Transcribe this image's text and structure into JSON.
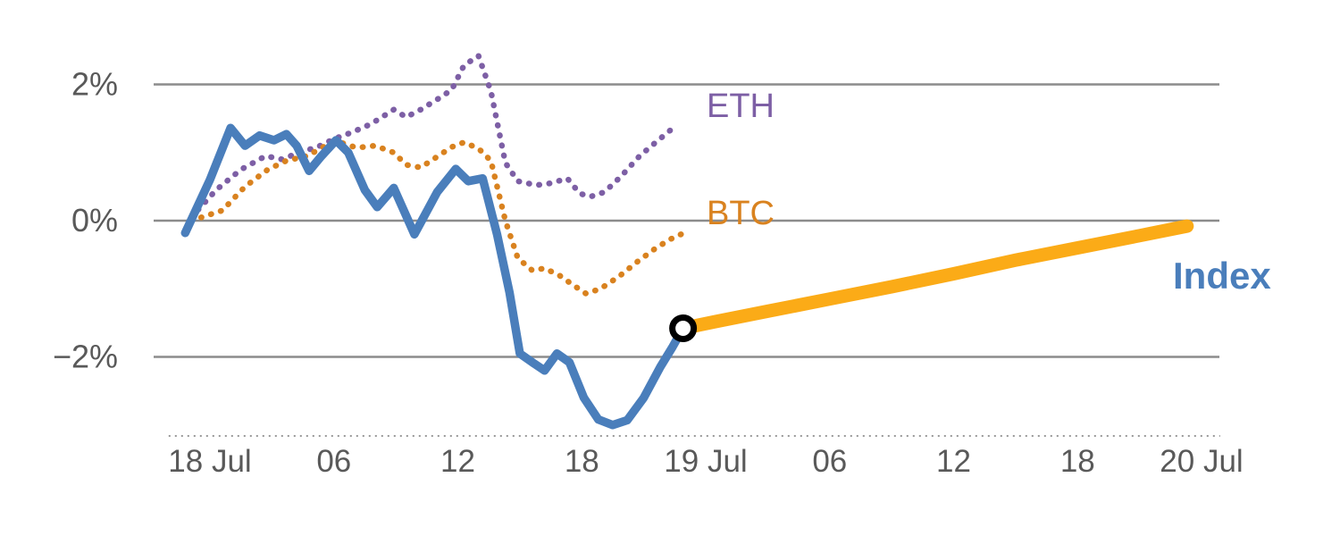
{
  "chart_data": {
    "type": "line",
    "grid": true,
    "grid_color": "#8c8c8c",
    "axis_color": "#999999",
    "text_color": "#595959",
    "baseline_value": -3.16,
    "ylim": [
      -3.3,
      2.6
    ],
    "xlim_hours": [
      -2,
      48.9
    ],
    "y_ticks": [
      {
        "value": 2,
        "label": "2%"
      },
      {
        "value": 0,
        "label": "0%"
      },
      {
        "value": -2,
        "label": "−2%"
      }
    ],
    "x_ticks": [
      {
        "t": 0,
        "label": "18 Jul"
      },
      {
        "t": 6,
        "label": "06"
      },
      {
        "t": 12,
        "label": "12"
      },
      {
        "t": 18,
        "label": "18"
      },
      {
        "t": 24,
        "label": "19 Jul"
      },
      {
        "t": 30,
        "label": "06"
      },
      {
        "t": 36,
        "label": "12"
      },
      {
        "t": 42,
        "label": "18"
      },
      {
        "t": 48,
        "label": "20 Jul"
      }
    ],
    "series_labels": {
      "eth": "ETH",
      "btc": "BTC",
      "index": "Index"
    },
    "series": [
      {
        "name": "ETH",
        "color": "#7d5fa5",
        "style": "dotted",
        "width": 6.5,
        "points": [
          [
            -0.9,
            0.05
          ],
          [
            0.3,
            0.45
          ],
          [
            1.5,
            0.75
          ],
          [
            2.7,
            0.95
          ],
          [
            3.5,
            0.9
          ],
          [
            4.3,
            1.0
          ],
          [
            5.2,
            1.08
          ],
          [
            6.0,
            1.2
          ],
          [
            6.9,
            1.3
          ],
          [
            7.8,
            1.42
          ],
          [
            8.9,
            1.63
          ],
          [
            9.5,
            1.52
          ],
          [
            10.2,
            1.63
          ],
          [
            11.0,
            1.78
          ],
          [
            11.7,
            1.92
          ],
          [
            12.3,
            2.28
          ],
          [
            13.0,
            2.42
          ],
          [
            13.6,
            1.9
          ],
          [
            14.3,
            0.85
          ],
          [
            14.9,
            0.58
          ],
          [
            15.8,
            0.52
          ],
          [
            16.5,
            0.55
          ],
          [
            17.3,
            0.62
          ],
          [
            17.9,
            0.4
          ],
          [
            18.4,
            0.35
          ],
          [
            19.1,
            0.42
          ],
          [
            19.9,
            0.65
          ],
          [
            20.8,
            0.95
          ],
          [
            21.7,
            1.18
          ],
          [
            22.5,
            1.38
          ]
        ]
      },
      {
        "name": "BTC",
        "color": "#d9821f",
        "style": "dotted",
        "width": 6.5,
        "points": [
          [
            -0.9,
            0.0
          ],
          [
            0.6,
            0.15
          ],
          [
            1.7,
            0.5
          ],
          [
            2.8,
            0.75
          ],
          [
            3.7,
            0.88
          ],
          [
            4.7,
            0.95
          ],
          [
            5.6,
            1.1
          ],
          [
            6.3,
            1.15
          ],
          [
            7.1,
            1.07
          ],
          [
            8.0,
            1.1
          ],
          [
            8.9,
            1.0
          ],
          [
            9.5,
            0.82
          ],
          [
            10.2,
            0.78
          ],
          [
            10.8,
            0.9
          ],
          [
            11.7,
            1.08
          ],
          [
            12.3,
            1.15
          ],
          [
            13.0,
            1.06
          ],
          [
            13.6,
            0.88
          ],
          [
            14.3,
            0.0
          ],
          [
            14.9,
            -0.55
          ],
          [
            15.6,
            -0.73
          ],
          [
            16.2,
            -0.7
          ],
          [
            16.9,
            -0.8
          ],
          [
            17.6,
            -0.95
          ],
          [
            18.2,
            -1.07
          ],
          [
            18.9,
            -1.0
          ],
          [
            19.8,
            -0.82
          ],
          [
            20.7,
            -0.6
          ],
          [
            21.6,
            -0.4
          ],
          [
            22.3,
            -0.27
          ],
          [
            22.8,
            -0.2
          ]
        ]
      },
      {
        "name": "Index forecast",
        "color": "#fbab17",
        "style": "solid",
        "width": 15,
        "points": [
          [
            22.9,
            -1.58
          ],
          [
            24.5,
            -1.48
          ],
          [
            27,
            -1.33
          ],
          [
            30,
            -1.15
          ],
          [
            33,
            -0.97
          ],
          [
            36,
            -0.78
          ],
          [
            39,
            -0.58
          ],
          [
            42,
            -0.4
          ],
          [
            45,
            -0.22
          ],
          [
            47.3,
            -0.08
          ]
        ]
      },
      {
        "name": "Index",
        "color": "#4a7ebb",
        "style": "solid",
        "width": 9.5,
        "points": [
          [
            -1.2,
            -0.18
          ],
          [
            0.0,
            0.6
          ],
          [
            1.0,
            1.36
          ],
          [
            1.7,
            1.1
          ],
          [
            2.4,
            1.25
          ],
          [
            3.1,
            1.18
          ],
          [
            3.7,
            1.27
          ],
          [
            4.2,
            1.1
          ],
          [
            4.8,
            0.73
          ],
          [
            5.4,
            0.95
          ],
          [
            6.1,
            1.18
          ],
          [
            6.7,
            1.0
          ],
          [
            7.5,
            0.45
          ],
          [
            8.1,
            0.2
          ],
          [
            8.9,
            0.48
          ],
          [
            9.9,
            -0.2
          ],
          [
            11.0,
            0.42
          ],
          [
            11.9,
            0.76
          ],
          [
            12.5,
            0.58
          ],
          [
            13.2,
            0.62
          ],
          [
            13.9,
            -0.2
          ],
          [
            14.5,
            -1.05
          ],
          [
            15.0,
            -1.95
          ],
          [
            15.7,
            -2.1
          ],
          [
            16.2,
            -2.2
          ],
          [
            16.8,
            -1.95
          ],
          [
            17.4,
            -2.08
          ],
          [
            18.1,
            -2.6
          ],
          [
            18.8,
            -2.92
          ],
          [
            19.5,
            -3.0
          ],
          [
            20.2,
            -2.93
          ],
          [
            21.0,
            -2.6
          ],
          [
            21.8,
            -2.15
          ],
          [
            22.4,
            -1.85
          ],
          [
            22.9,
            -1.58
          ]
        ]
      }
    ],
    "marker": {
      "t": 22.9,
      "value": -1.58,
      "fill": "#ffffff",
      "stroke": "#000000"
    }
  }
}
